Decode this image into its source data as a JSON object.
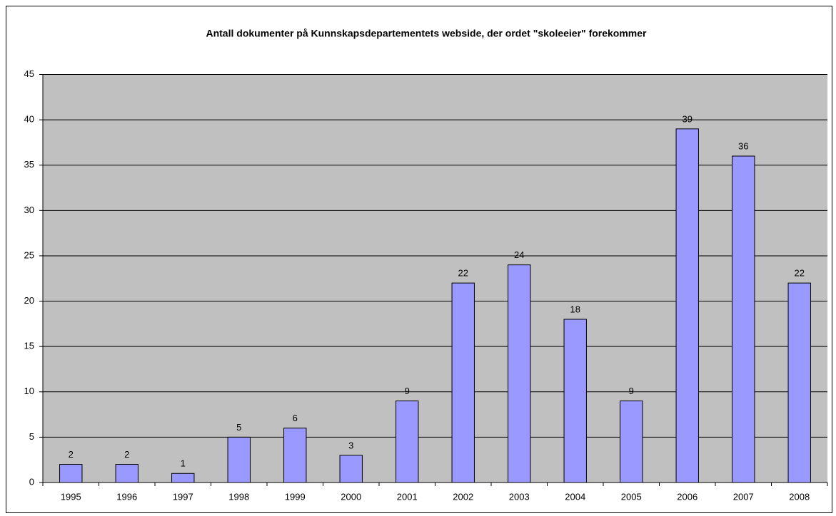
{
  "chart_data": {
    "type": "bar",
    "title": "Antall dokumenter på Kunnskapsdepartementets webside, der ordet \"skoleeier\" forekommer",
    "categories": [
      "1995",
      "1996",
      "1997",
      "1998",
      "1999",
      "2000",
      "2001",
      "2002",
      "2003",
      "2004",
      "2005",
      "2006",
      "2007",
      "2008"
    ],
    "values": [
      2,
      2,
      1,
      5,
      6,
      3,
      9,
      22,
      24,
      18,
      9,
      39,
      36,
      22
    ],
    "color": "#9999ff",
    "ylim": [
      0,
      45
    ],
    "yticks": [
      0,
      5,
      10,
      15,
      20,
      25,
      30,
      35,
      40,
      45
    ],
    "grid": true
  }
}
